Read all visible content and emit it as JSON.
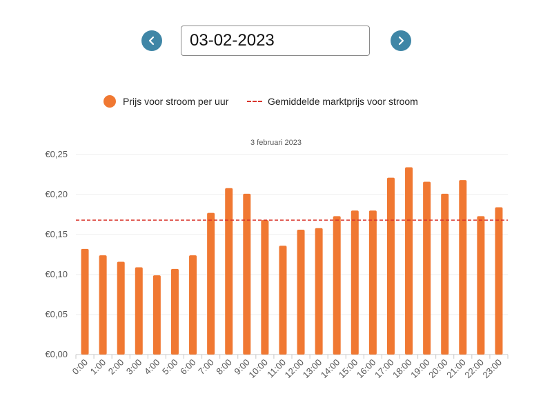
{
  "navigation": {
    "prev_icon": "chevron-left-icon",
    "next_icon": "chevron-right-icon",
    "accent_color": "#3f86a6"
  },
  "date_picker": {
    "value": "03-02-2023"
  },
  "legend": {
    "bar_label": "Prijs voor stroom per uur",
    "line_label": "Gemiddelde marktprijs voor stroom"
  },
  "chart_data": {
    "type": "bar",
    "title": "3 februari 2023",
    "categories": [
      "0:00",
      "1:00",
      "2:00",
      "3:00",
      "4:00",
      "5:00",
      "6:00",
      "7:00",
      "8:00",
      "9:00",
      "10:00",
      "11:00",
      "12:00",
      "13:00",
      "14:00",
      "15:00",
      "16:00",
      "17:00",
      "18:00",
      "19:00",
      "20:00",
      "21:00",
      "22:00",
      "23:00"
    ],
    "series": [
      {
        "name": "Prijs voor stroom per uur",
        "values": [
          0.132,
          0.124,
          0.116,
          0.109,
          0.099,
          0.107,
          0.124,
          0.177,
          0.208,
          0.201,
          0.168,
          0.136,
          0.156,
          0.158,
          0.173,
          0.18,
          0.18,
          0.221,
          0.234,
          0.216,
          0.201,
          0.218,
          0.173,
          0.184
        ],
        "color": "#f07832"
      }
    ],
    "average_line": {
      "name": "Gemiddelde marktprijs voor stroom",
      "value": 0.168,
      "color": "#d9342b",
      "style": "dashed"
    },
    "ylim": [
      0,
      0.25
    ],
    "yticks": [
      0,
      0.05,
      0.1,
      0.15,
      0.2,
      0.25
    ],
    "ytick_labels": [
      "€0,00",
      "€0,05",
      "€0,10",
      "€0,15",
      "€0,20",
      "€0,25"
    ],
    "grid": true,
    "legend_position": "top"
  }
}
